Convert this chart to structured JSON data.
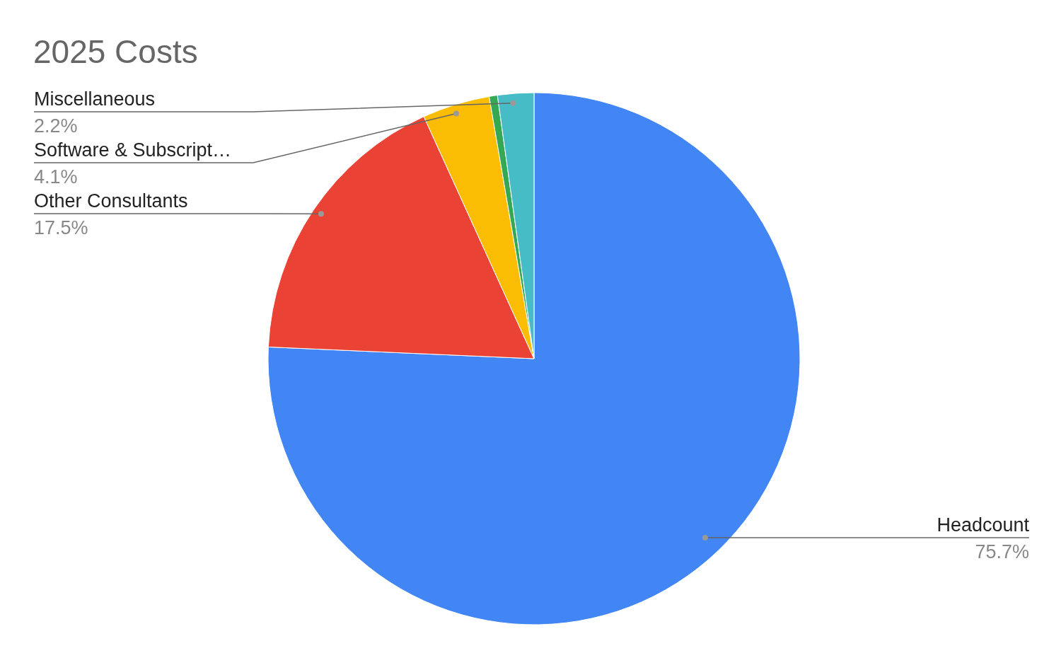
{
  "chart_data": {
    "type": "pie",
    "title": "2025 Costs",
    "categories": [
      "Headcount",
      "Other Consultants",
      "Software & Subscript…",
      null,
      "Miscellaneous"
    ],
    "values": [
      75.7,
      17.5,
      4.1,
      0.5,
      2.2
    ],
    "value_labels": [
      "75.7%",
      "17.5%",
      "4.1%",
      null,
      "2.2%"
    ],
    "colors": [
      "#4285f4",
      "#ea4335",
      "#fbbc04",
      "#34a853",
      "#46bdc6"
    ]
  }
}
